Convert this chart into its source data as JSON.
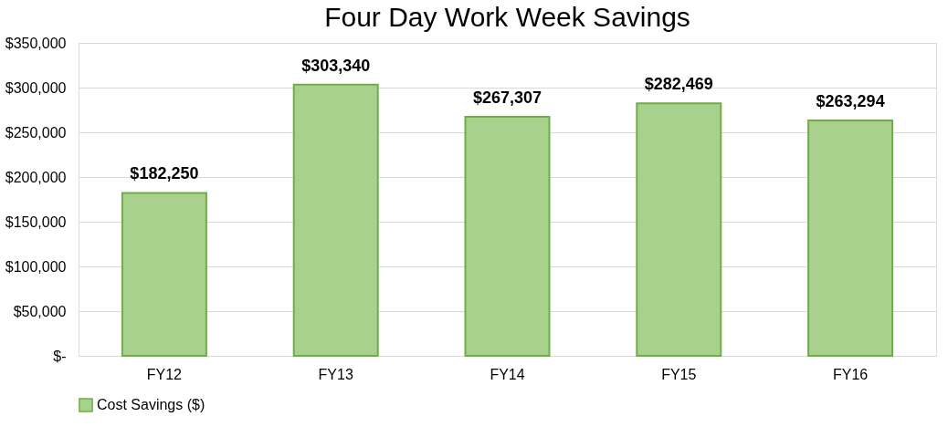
{
  "chart_data": {
    "type": "bar",
    "title": "Four Day Work Week Savings",
    "categories": [
      "FY12",
      "FY13",
      "FY14",
      "FY15",
      "FY16"
    ],
    "series": [
      {
        "name": "Cost Savings ($)",
        "color": "#a9d18e",
        "values": [
          182250,
          303340,
          267307,
          282469,
          263294
        ]
      }
    ],
    "value_labels": [
      "$182,250",
      "$303,340",
      "$267,307",
      "$282,469",
      "$263,294"
    ],
    "ylim": [
      0,
      350000
    ],
    "yticks": [
      {
        "value": 0,
        "label": "$-"
      },
      {
        "value": 50000,
        "label": "$50,000"
      },
      {
        "value": 100000,
        "label": "$100,000"
      },
      {
        "value": 150000,
        "label": "$150,000"
      },
      {
        "value": 200000,
        "label": "$200,000"
      },
      {
        "value": 250000,
        "label": "$250,000"
      },
      {
        "value": 300000,
        "label": "$300,000"
      },
      {
        "value": 350000,
        "label": "$350,000"
      }
    ],
    "grid": "y",
    "legend": "bottom"
  }
}
